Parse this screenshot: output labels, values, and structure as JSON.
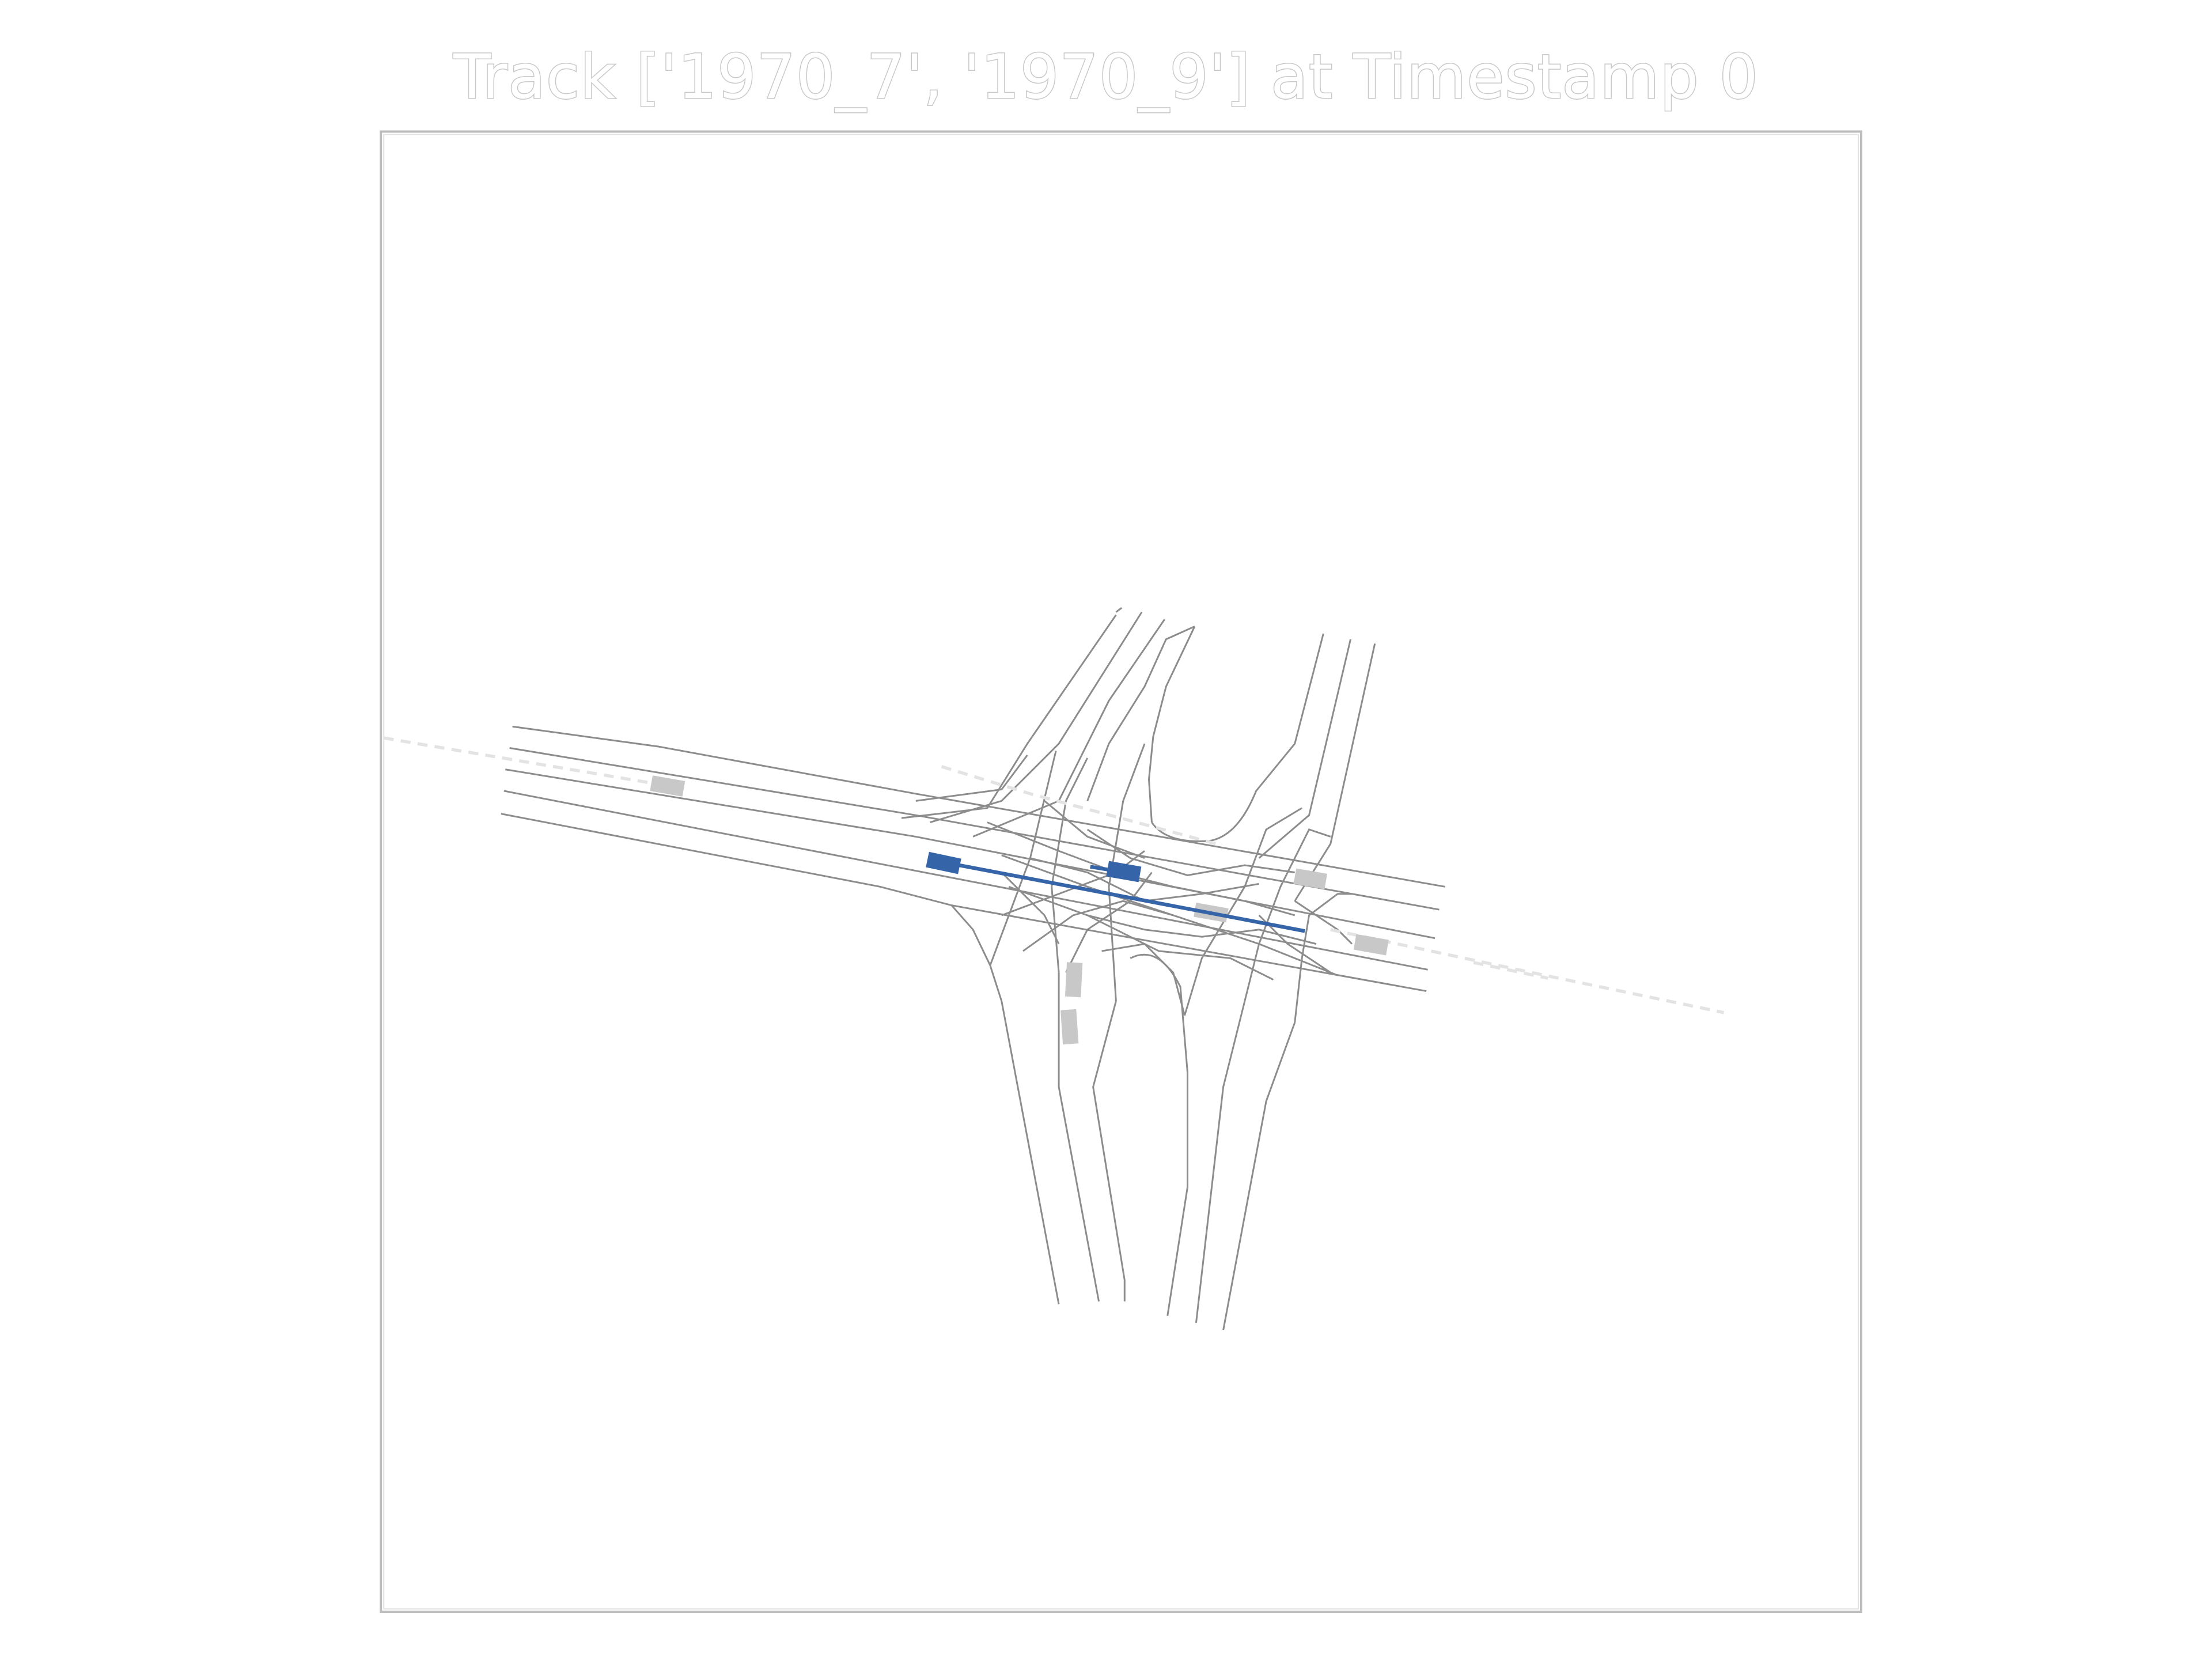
{
  "title": "Track ['1970_7', '1970_9'] at Timestamp 0",
  "colors": {
    "road": "#8c8c8c",
    "frame": "#bdbdbd",
    "tracked": "#3565a8",
    "other": "#c8c8c8",
    "history": "#e3e3e3"
  },
  "tracked_vehicles": [
    "1970_7",
    "1970_9"
  ],
  "timestamp": 0
}
